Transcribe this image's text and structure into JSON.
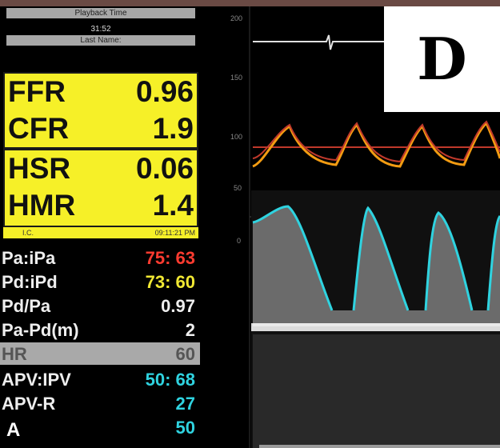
{
  "playback": {
    "label": "Playback Time",
    "time": "31:52",
    "last_name_label": "Last Name:"
  },
  "indices_box1": [
    {
      "label": "FFR",
      "value": "0.96"
    },
    {
      "label": "CFR",
      "value": "1.9"
    }
  ],
  "indices_box2": [
    {
      "label": "HSR",
      "value": "0.06"
    },
    {
      "label": "HMR",
      "value": "1.4"
    }
  ],
  "ic_bar": {
    "label": "I.C.",
    "time": "09:11:21 PM"
  },
  "measurements": [
    {
      "label": "Pa:iPa",
      "value": "75: 63",
      "color": "#ff3b30"
    },
    {
      "label": "Pd:iPd",
      "value": "73: 60",
      "color": "#f1e833"
    },
    {
      "label": "Pd/Pa",
      "value": "0.97",
      "color": "#eeeeee"
    },
    {
      "label": "Pa-Pd(m)",
      "value": "2",
      "color": "#eeeeee"
    },
    {
      "label": "HR",
      "value": "60",
      "color": "#555555"
    },
    {
      "label": "APV:IPV",
      "value": "50: 68",
      "color": "#2fd3e0"
    },
    {
      "label": "APV-R",
      "value": "27",
      "color": "#2fd3e0"
    },
    {
      "label": "",
      "value": "50",
      "color": "#2fd3e0"
    }
  ],
  "panel_label": "A",
  "figure_label": "D",
  "axis_ticks": [
    "200",
    "150",
    "100",
    "50",
    "0"
  ],
  "colors": {
    "highlight": "#f6f028",
    "pa_trace": "#c0392b",
    "pd_trace": "#f39c12",
    "doppler_envelope": "#2fd3e0"
  }
}
